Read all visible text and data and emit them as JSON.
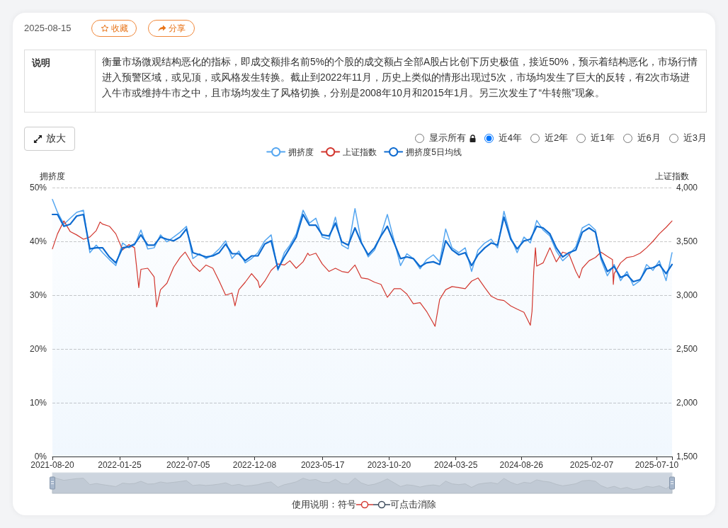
{
  "chart_data": {
    "type": "line",
    "ylabel": "拥挤度",
    "y2label": "上证指数",
    "annotations": [
      "2025-08-15",
      "收藏",
      "分享",
      "说明",
      "衡量市场微观结构恶化的指标，即成交额排名前5%的个股的成交额占全部A股占比创下历史极值，接近50%，预示着结构恶化，市场行情进入预警区域，或见顶，或风格发生转换。截止到2022年11月，历史上类似的情形出现过5次，市场均发生了巨大的反转，有2次市场进入牛市或维持牛市之中，且市场均发生了风格切换，分别是2008年10月和2015年1月。另三次发生了“牛转熊”现象。",
      "放大",
      "显示所有",
      "近4年",
      "近2年",
      "近1年",
      "近6月",
      "近3月",
      "使用说明：符号",
      "可点击消除"
    ],
    "x": [
      "2021-08-20",
      "2021-09-01",
      "2021-09-16",
      "2021-10-01",
      "2021-10-16",
      "2021-11-01",
      "2021-11-16",
      "2021-12-01",
      "2021-12-16",
      "2022-01-01",
      "2022-01-16",
      "2022-02-01",
      "2022-02-16",
      "2022-03-01",
      "2022-03-16",
      "2022-04-01",
      "2022-04-16",
      "2022-05-01",
      "2022-05-16",
      "2022-06-01",
      "2022-06-16",
      "2022-07-01",
      "2022-07-16",
      "2022-08-01",
      "2022-08-16",
      "2022-09-01",
      "2022-09-16",
      "2022-10-01",
      "2022-10-16",
      "2022-11-01",
      "2022-11-16",
      "2022-12-01",
      "2022-12-16",
      "2023-01-01",
      "2023-01-16",
      "2023-02-01",
      "2023-02-16",
      "2023-03-01",
      "2023-03-16",
      "2023-04-01",
      "2023-04-16",
      "2023-05-01",
      "2023-05-16",
      "2023-06-01",
      "2023-06-16",
      "2023-07-01",
      "2023-07-16",
      "2023-08-01",
      "2023-08-16",
      "2023-09-01",
      "2023-09-16",
      "2023-10-01",
      "2023-10-16",
      "2023-11-01",
      "2023-11-16",
      "2023-12-01",
      "2023-12-16",
      "2024-01-01",
      "2024-01-16",
      "2024-02-01",
      "2024-02-16",
      "2024-03-01",
      "2024-03-16",
      "2024-04-01",
      "2024-04-16",
      "2024-05-01",
      "2024-05-16",
      "2024-06-01",
      "2024-06-16",
      "2024-07-01",
      "2024-07-16",
      "2024-08-01",
      "2024-08-16",
      "2024-09-01",
      "2024-09-16",
      "2024-10-01",
      "2024-10-16",
      "2024-11-01",
      "2024-11-16",
      "2024-12-01",
      "2024-12-16",
      "2025-01-01",
      "2025-01-16",
      "2025-02-01",
      "2025-02-16",
      "2025-03-01",
      "2025-03-16",
      "2025-04-01",
      "2025-04-16",
      "2025-05-01",
      "2025-05-16",
      "2025-06-01",
      "2025-06-16",
      "2025-07-01",
      "2025-07-16",
      "2025-08-01",
      "2025-08-15"
    ],
    "series": [
      {
        "name": "拥挤度",
        "type": "area",
        "color": "#55a6f0",
        "values": [
          47.8,
          45.4,
          43.2,
          44.3,
          45.4,
          45.8,
          37.9,
          39.3,
          37.9,
          36.6,
          35.5,
          39.7,
          38.8,
          39.3,
          42.1,
          38.6,
          38.8,
          41.2,
          39.9,
          40.8,
          41.7,
          42.8,
          36.8,
          37.7,
          36.8,
          37.5,
          38.6,
          40.1,
          36.8,
          38.2,
          36.0,
          36.8,
          37.9,
          40.1,
          41.2,
          34.6,
          37.9,
          39.3,
          41.4,
          45.8,
          43.4,
          44.3,
          40.8,
          40.4,
          44.5,
          39.3,
          38.6,
          46.1,
          39.9,
          37.1,
          38.4,
          41.2,
          45.0,
          40.1,
          35.5,
          37.7,
          36.8,
          34.9,
          36.6,
          37.5,
          36.2,
          42.3,
          38.8,
          37.9,
          38.8,
          34.4,
          38.4,
          39.7,
          40.4,
          38.8,
          45.6,
          40.8,
          37.9,
          40.8,
          39.7,
          43.9,
          42.1,
          41.0,
          38.2,
          36.4,
          37.5,
          39.0,
          42.5,
          43.2,
          42.1,
          36.6,
          33.6,
          35.7,
          32.7,
          34.4,
          31.8,
          32.7,
          35.7,
          34.6,
          36.4,
          32.7,
          37.9
        ]
      },
      {
        "name": "上证指数",
        "color": "#d2372f",
        "axis": "y2",
        "x": [
          "2021-08-20",
          "2021-09-01",
          "2021-09-16",
          "2021-10-01",
          "2021-10-16",
          "2021-11-01",
          "2021-11-16",
          "2021-12-01",
          "2021-12-10",
          "2021-12-16",
          "2022-01-01",
          "2022-01-16",
          "2022-02-01",
          "2022-02-16",
          "2022-03-01",
          "2022-03-11",
          "2022-03-16",
          "2022-04-01",
          "2022-04-16",
          "2022-04-22",
          "2022-05-01",
          "2022-05-16",
          "2022-06-01",
          "2022-06-16",
          "2022-06-28",
          "2022-07-01",
          "2022-07-16",
          "2022-08-01",
          "2022-08-16",
          "2022-09-01",
          "2022-09-16",
          "2022-10-01",
          "2022-10-16",
          "2022-10-23",
          "2022-11-01",
          "2022-11-16",
          "2022-12-01",
          "2022-12-16",
          "2022-12-20",
          "2023-01-01",
          "2023-01-16",
          "2023-02-01",
          "2023-02-16",
          "2023-03-01",
          "2023-03-16",
          "2023-04-01",
          "2023-04-12",
          "2023-04-16",
          "2023-05-01",
          "2023-05-16",
          "2023-06-01",
          "2023-06-16",
          "2023-07-01",
          "2023-07-16",
          "2023-08-01",
          "2023-08-16",
          "2023-09-01",
          "2023-09-16",
          "2023-10-01",
          "2023-10-16",
          "2023-11-01",
          "2023-11-16",
          "2023-12-01",
          "2023-12-16",
          "2024-01-01",
          "2024-01-16",
          "2024-02-01",
          "2024-02-05",
          "2024-02-16",
          "2024-03-01",
          "2024-03-16",
          "2024-04-01",
          "2024-04-16",
          "2024-05-01",
          "2024-05-16",
          "2024-06-01",
          "2024-06-16",
          "2024-07-01",
          "2024-07-16",
          "2024-08-01",
          "2024-08-16",
          "2024-09-01",
          "2024-09-16",
          "2024-09-20",
          "2024-09-24",
          "2024-09-28",
          "2024-10-01",
          "2024-10-16",
          "2024-11-01",
          "2024-11-16",
          "2024-12-01",
          "2024-12-16",
          "2025-01-01",
          "2025-01-09",
          "2025-01-16",
          "2025-02-01",
          "2025-02-16",
          "2025-03-01",
          "2025-03-16",
          "2025-03-28",
          "2025-03-30",
          "2025-04-01",
          "2025-04-16",
          "2025-05-01",
          "2025-05-16",
          "2025-06-01",
          "2025-06-16",
          "2025-07-01",
          "2025-07-16",
          "2025-08-01",
          "2025-08-15"
        ],
        "values": [
          3430,
          3570,
          3690,
          3590,
          3560,
          3520,
          3540,
          3600,
          3680,
          3660,
          3640,
          3570,
          3420,
          3470,
          3440,
          3070,
          3240,
          3250,
          3170,
          2890,
          3050,
          3110,
          3260,
          3350,
          3400,
          3380,
          3280,
          3220,
          3280,
          3250,
          3130,
          3000,
          3020,
          2900,
          3050,
          3120,
          3200,
          3130,
          3070,
          3130,
          3230,
          3290,
          3280,
          3320,
          3250,
          3310,
          3390,
          3370,
          3390,
          3290,
          3220,
          3250,
          3220,
          3210,
          3280,
          3160,
          3150,
          3120,
          3100,
          2980,
          3060,
          3060,
          3010,
          2920,
          2930,
          2850,
          2740,
          2710,
          2960,
          3050,
          3080,
          3070,
          3060,
          3130,
          3160,
          3070,
          2990,
          2960,
          2950,
          2900,
          2870,
          2840,
          2720,
          2850,
          3220,
          3440,
          3270,
          3300,
          3440,
          3310,
          3400,
          3380,
          3220,
          3160,
          3250,
          3320,
          3350,
          3400,
          3360,
          3330,
          3100,
          3200,
          3300,
          3350,
          3360,
          3390,
          3440,
          3500,
          3570,
          3630,
          3690
        ]
      },
      {
        "name": "拥挤度5日均线",
        "color": "#0e6bd0",
        "values": [
          45.0,
          45.0,
          42.8,
          43.2,
          44.7,
          45.0,
          38.6,
          38.8,
          38.8,
          37.1,
          36.0,
          38.8,
          39.0,
          39.5,
          41.2,
          39.3,
          39.3,
          40.8,
          40.4,
          40.1,
          40.8,
          42.3,
          37.9,
          37.5,
          37.1,
          37.3,
          37.9,
          39.5,
          37.7,
          37.7,
          36.4,
          37.3,
          37.3,
          39.5,
          40.1,
          34.9,
          37.1,
          38.8,
          40.8,
          45.0,
          43.0,
          43.0,
          41.2,
          41.0,
          43.4,
          39.9,
          39.3,
          42.5,
          39.7,
          37.5,
          38.8,
          41.0,
          42.8,
          39.7,
          36.8,
          37.1,
          36.8,
          35.3,
          36.0,
          36.2,
          35.7,
          40.1,
          38.4,
          37.5,
          37.9,
          35.5,
          37.5,
          38.8,
          39.7,
          39.3,
          44.5,
          40.4,
          38.6,
          40.1,
          40.4,
          42.8,
          42.5,
          41.4,
          38.8,
          37.1,
          37.9,
          38.4,
          41.7,
          42.5,
          41.7,
          37.1,
          34.4,
          35.3,
          33.3,
          33.8,
          32.5,
          32.9,
          34.9,
          35.1,
          35.7,
          34.0,
          35.7
        ]
      }
    ],
    "xlim": [
      "2021-08-20",
      "2025-08-15"
    ],
    "xticks": [
      "2021-08-20",
      "2022-01-25",
      "2022-07-05",
      "2022-12-08",
      "2023-05-17",
      "2023-10-20",
      "2024-03-25",
      "2024-08-26",
      "2025-02-07",
      "2025-07-10",
      {
        "value": "2025-08-15",
        "label": null
      }
    ],
    "ylim": [
      0,
      50
    ],
    "yticks": [
      {
        "value": 0,
        "label": "0%"
      },
      {
        "value": 10,
        "label": "10%"
      },
      {
        "value": 20,
        "label": "20%"
      },
      {
        "value": 30,
        "label": "30%"
      },
      {
        "value": 40,
        "label": "40%"
      },
      {
        "value": 50,
        "label": "50%"
      }
    ],
    "y2lim": [
      1500,
      4000
    ],
    "y2ticks": [
      {
        "value": 1500,
        "label": "1,500"
      },
      {
        "value": 2000,
        "label": "2,000"
      },
      {
        "value": 2500,
        "label": "2,500"
      },
      {
        "value": 3000,
        "label": "3,000"
      },
      {
        "value": 3500,
        "label": "3,500"
      },
      {
        "value": 4000,
        "label": "4,000"
      }
    ],
    "grid": "y",
    "legend": "top"
  }
}
